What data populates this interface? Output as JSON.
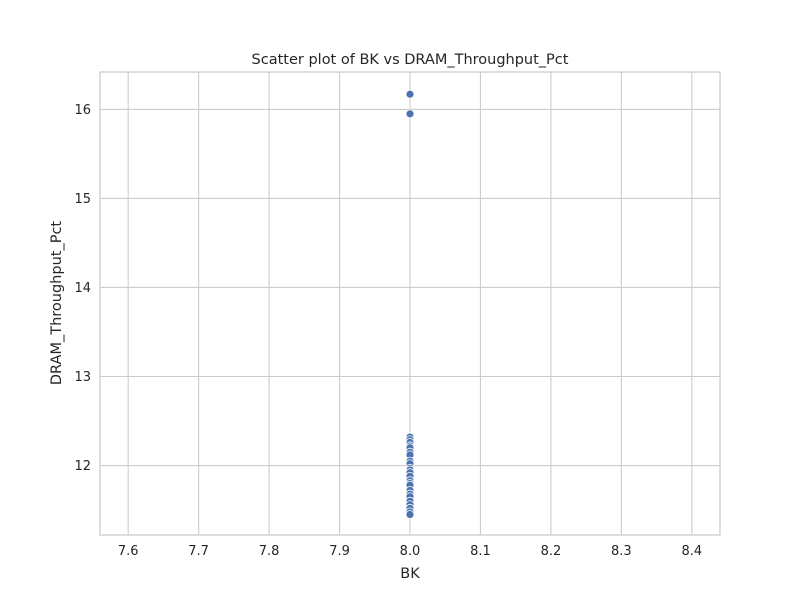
{
  "chart_data": {
    "type": "scatter",
    "title": "Scatter plot of BK vs DRAM_Throughput_Pct",
    "xlabel": "BK",
    "ylabel": "DRAM_Throughput_Pct",
    "xlim": [
      7.56,
      8.44
    ],
    "ylim": [
      11.22,
      16.42
    ],
    "xticks": [
      7.6,
      7.7,
      7.8,
      7.9,
      8.0,
      8.1,
      8.2,
      8.3,
      8.4
    ],
    "xtick_labels": [
      "7.6",
      "7.7",
      "7.8",
      "7.9",
      "8.0",
      "8.1",
      "8.2",
      "8.3",
      "8.4"
    ],
    "yticks": [
      12,
      13,
      14,
      15,
      16
    ],
    "ytick_labels": [
      "12",
      "13",
      "14",
      "15",
      "16"
    ],
    "grid": true,
    "point_color": "#4c72b0",
    "series": [
      {
        "x": [
          8.0,
          8.0,
          8.0,
          8.0,
          8.0,
          8.0,
          8.0,
          8.0,
          8.0,
          8.0,
          8.0,
          8.0,
          8.0,
          8.0,
          8.0,
          8.0,
          8.0,
          8.0,
          8.0,
          8.0,
          8.0,
          8.0,
          8.0,
          8.0,
          8.0,
          8.0
        ],
        "y": [
          16.17,
          15.95,
          12.32,
          12.29,
          12.26,
          12.22,
          12.2,
          12.15,
          12.12,
          12.05,
          12.02,
          11.97,
          11.95,
          11.92,
          11.88,
          11.83,
          11.8,
          11.78,
          11.72,
          11.68,
          11.65,
          11.6,
          11.56,
          11.52,
          11.48,
          11.45
        ]
      }
    ]
  }
}
